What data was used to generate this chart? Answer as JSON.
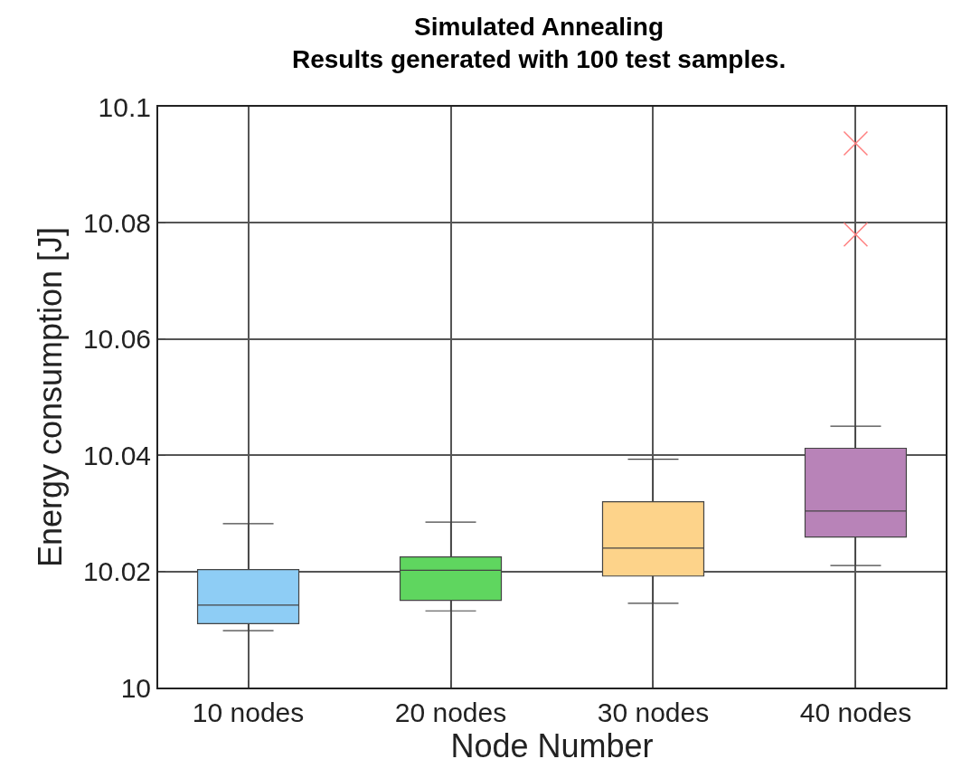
{
  "chart_data": {
    "type": "box",
    "title": "Simulated Annealing\nResults generated with 100 test samples.",
    "xlabel": "Node Number",
    "ylabel": "Energy consumption [J]",
    "categories": [
      "10 nodes",
      "20 nodes",
      "30 nodes",
      "40 nodes"
    ],
    "colors": [
      "#8ecdf5",
      "#5fd65f",
      "#fdd38a",
      "#b883b8"
    ],
    "boxes": [
      {
        "low": 10.0098,
        "q1": 10.011,
        "median": 10.0142,
        "q3": 10.0203,
        "high": 10.0282
      },
      {
        "low": 10.0132,
        "q1": 10.015,
        "median": 10.0202,
        "q3": 10.0225,
        "high": 10.0285
      },
      {
        "low": 10.0145,
        "q1": 10.0192,
        "median": 10.024,
        "q3": 10.032,
        "high": 10.0393
      },
      {
        "low": 10.021,
        "q1": 10.0259,
        "median": 10.0304,
        "q3": 10.0412,
        "high": 10.045,
        "outliers": [
          10.078,
          10.0937
        ]
      }
    ],
    "ylim": [
      10,
      10.1
    ],
    "yticks": [
      10,
      10.02,
      10.04,
      10.06,
      10.08,
      10.1
    ],
    "grid": true
  }
}
